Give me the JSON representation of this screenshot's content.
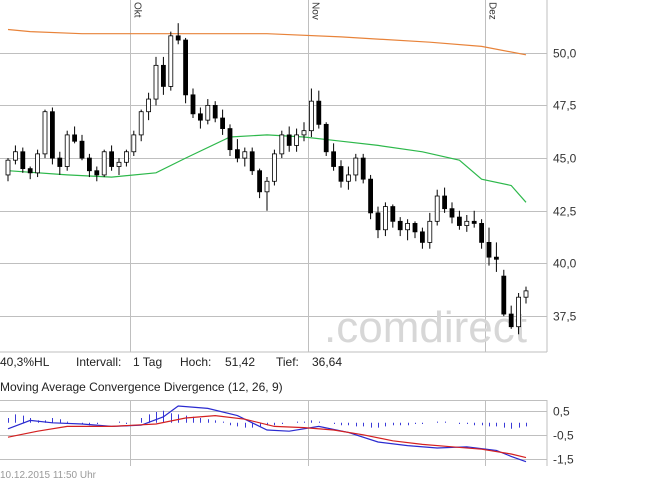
{
  "chart_data": [
    {
      "type": "candlestick",
      "months": [
        "Okt",
        "Nov",
        "Dez"
      ],
      "y_ticks": [
        "50,0",
        "47,5",
        "45,0",
        "42,5",
        "40,0",
        "37,5"
      ],
      "y_tick_values": [
        50.0,
        47.5,
        45.0,
        42.5,
        40.0,
        37.5
      ],
      "ylim": [
        35.8,
        52.5
      ],
      "grid": true,
      "watermark": ".comdirect",
      "candles": [
        [
          44.2,
          45.0,
          43.9,
          44.9
        ],
        [
          44.9,
          45.6,
          44.7,
          45.3
        ],
        [
          45.3,
          45.5,
          44.3,
          44.5
        ],
        [
          44.5,
          44.6,
          44.0,
          44.3
        ],
        [
          44.3,
          45.4,
          44.1,
          45.2
        ],
        [
          45.2,
          47.3,
          45.0,
          47.2
        ],
        [
          47.2,
          47.4,
          44.7,
          45.0
        ],
        [
          45.0,
          45.3,
          44.2,
          44.6
        ],
        [
          44.6,
          46.3,
          44.4,
          46.1
        ],
        [
          46.1,
          46.5,
          45.7,
          45.8
        ],
        [
          45.8,
          46.1,
          44.9,
          45.0
        ],
        [
          45.0,
          45.2,
          44.1,
          44.4
        ],
        [
          44.4,
          44.6,
          43.9,
          44.2
        ],
        [
          44.2,
          45.4,
          44.1,
          45.3
        ],
        [
          45.3,
          45.6,
          44.4,
          44.6
        ],
        [
          44.6,
          45.0,
          44.2,
          44.8
        ],
        [
          44.8,
          45.4,
          44.6,
          45.3
        ],
        [
          45.3,
          46.3,
          45.1,
          46.1
        ],
        [
          46.1,
          47.3,
          45.8,
          47.2
        ],
        [
          47.2,
          48.1,
          46.8,
          47.8
        ],
        [
          47.8,
          49.8,
          47.5,
          49.4
        ],
        [
          49.4,
          49.8,
          48.0,
          48.4
        ],
        [
          48.4,
          51.0,
          48.2,
          50.8
        ],
        [
          50.8,
          51.4,
          50.4,
          50.6
        ],
        [
          50.6,
          50.7,
          47.6,
          48.0
        ],
        [
          48.0,
          48.3,
          46.9,
          47.1
        ],
        [
          47.1,
          47.4,
          46.4,
          46.8
        ],
        [
          46.8,
          47.8,
          46.6,
          47.5
        ],
        [
          47.5,
          47.7,
          46.7,
          46.9
        ],
        [
          46.9,
          47.3,
          46.1,
          46.4
        ],
        [
          46.4,
          46.6,
          45.1,
          45.4
        ],
        [
          45.4,
          45.9,
          44.8,
          45.0
        ],
        [
          45.0,
          45.5,
          44.6,
          45.3
        ],
        [
          45.3,
          45.5,
          44.2,
          44.4
        ],
        [
          44.4,
          44.5,
          43.1,
          43.4
        ],
        [
          43.4,
          44.1,
          42.5,
          43.9
        ],
        [
          43.9,
          45.4,
          43.7,
          45.2
        ],
        [
          45.2,
          46.3,
          45.0,
          46.1
        ],
        [
          46.1,
          46.5,
          45.3,
          45.6
        ],
        [
          45.6,
          46.4,
          45.3,
          46.1
        ],
        [
          46.1,
          46.7,
          45.8,
          46.3
        ],
        [
          46.3,
          48.3,
          46.0,
          47.7
        ],
        [
          47.7,
          48.2,
          46.4,
          46.6
        ],
        [
          46.6,
          46.7,
          45.1,
          45.3
        ],
        [
          45.3,
          45.7,
          44.4,
          44.6
        ],
        [
          44.6,
          44.9,
          43.6,
          43.9
        ],
        [
          43.9,
          44.6,
          43.5,
          44.2
        ],
        [
          44.2,
          45.2,
          43.9,
          45.0
        ],
        [
          45.0,
          45.2,
          43.8,
          44.0
        ],
        [
          44.0,
          44.2,
          42.1,
          42.4
        ],
        [
          42.4,
          42.7,
          41.2,
          41.6
        ],
        [
          41.6,
          42.9,
          41.3,
          42.7
        ],
        [
          42.7,
          42.8,
          41.7,
          42.0
        ],
        [
          42.0,
          42.2,
          41.3,
          41.6
        ],
        [
          41.6,
          42.1,
          41.1,
          41.9
        ],
        [
          41.9,
          42.0,
          41.2,
          41.5
        ],
        [
          41.5,
          41.7,
          40.7,
          41.0
        ],
        [
          41.0,
          42.4,
          40.7,
          42.0
        ],
        [
          42.0,
          43.5,
          41.8,
          43.2
        ],
        [
          43.2,
          43.6,
          42.4,
          42.6
        ],
        [
          42.6,
          42.9,
          41.9,
          42.2
        ],
        [
          42.2,
          42.5,
          41.6,
          41.8
        ],
        [
          41.8,
          42.3,
          41.5,
          42.0
        ],
        [
          42.0,
          42.5,
          41.7,
          41.9
        ],
        [
          41.9,
          42.1,
          40.7,
          41.0
        ],
        [
          41.0,
          41.7,
          39.9,
          40.3
        ],
        [
          40.3,
          41.0,
          39.6,
          40.2
        ],
        [
          39.4,
          39.7,
          37.5,
          37.6
        ],
        [
          37.6,
          38.0,
          36.9,
          37.0
        ],
        [
          37.0,
          38.6,
          36.64,
          38.4
        ],
        [
          38.4,
          38.9,
          38.1,
          38.7
        ]
      ],
      "series": [
        {
          "name": "",
          "color": "#e8833a",
          "values": [
            [
              0,
              51.1
            ],
            [
              3,
              51.0
            ],
            [
              10,
              50.9
            ],
            [
              20,
              50.9
            ],
            [
              35,
              50.9
            ],
            [
              45,
              50.75
            ],
            [
              57,
              50.5
            ],
            [
              64,
              50.3
            ],
            [
              70,
              49.9
            ]
          ]
        },
        {
          "name": "",
          "color": "#2db84b",
          "values": [
            [
              0,
              44.4
            ],
            [
              8,
              44.2
            ],
            [
              14,
              44.1
            ],
            [
              20,
              44.3
            ],
            [
              24,
              45.0
            ],
            [
              30,
              46.0
            ],
            [
              35,
              46.1
            ],
            [
              40,
              46.0
            ],
            [
              45,
              45.8
            ],
            [
              50,
              45.6
            ],
            [
              56,
              45.3
            ],
            [
              61,
              44.9
            ],
            [
              64,
              44.0
            ],
            [
              68,
              43.7
            ],
            [
              70,
              42.9
            ]
          ]
        }
      ]
    },
    {
      "type": "macd",
      "title": "Moving Average Convergence Divergence (12, 26, 9)",
      "y_ticks": [
        "0,5",
        "-0,5",
        "-1,5"
      ],
      "y_tick_values": [
        0.5,
        -0.5,
        -1.5
      ],
      "ylim": [
        -1.8,
        0.95
      ],
      "grid": true,
      "series": [
        {
          "name": "",
          "color": "#2a2ad0",
          "values": [
            [
              0,
              -0.25
            ],
            [
              3,
              0.1
            ],
            [
              6,
              0.0
            ],
            [
              10,
              -0.05
            ],
            [
              14,
              -0.15
            ],
            [
              18,
              -0.1
            ],
            [
              21,
              0.25
            ],
            [
              23,
              0.7
            ],
            [
              27,
              0.6
            ],
            [
              31,
              0.3
            ],
            [
              35,
              -0.3
            ],
            [
              38,
              -0.35
            ],
            [
              42,
              -0.15
            ],
            [
              46,
              -0.4
            ],
            [
              50,
              -0.8
            ],
            [
              54,
              -0.95
            ],
            [
              58,
              -1.05
            ],
            [
              62,
              -1.0
            ],
            [
              66,
              -1.15
            ],
            [
              68,
              -1.4
            ],
            [
              70,
              -1.62
            ]
          ]
        },
        {
          "name": "",
          "color": "#d42020",
          "values": [
            [
              0,
              -0.6
            ],
            [
              4,
              -0.35
            ],
            [
              8,
              -0.15
            ],
            [
              14,
              -0.15
            ],
            [
              20,
              -0.05
            ],
            [
              24,
              0.2
            ],
            [
              28,
              0.3
            ],
            [
              32,
              0.15
            ],
            [
              36,
              -0.15
            ],
            [
              40,
              -0.2
            ],
            [
              44,
              -0.3
            ],
            [
              48,
              -0.5
            ],
            [
              52,
              -0.75
            ],
            [
              56,
              -0.9
            ],
            [
              60,
              -1.0
            ],
            [
              64,
              -1.1
            ],
            [
              68,
              -1.3
            ],
            [
              70,
              -1.45
            ]
          ]
        }
      ],
      "histogram": [
        0.2,
        0.35,
        0.3,
        0.2,
        0.1,
        0.1,
        0.2,
        0.15,
        0.05,
        0.0,
        -0.05,
        -0.1,
        -0.05,
        0.0,
        0.0,
        0.05,
        -0.05,
        0.0,
        0.2,
        0.35,
        0.45,
        0.5,
        0.4,
        0.35,
        0.3,
        0.25,
        0.2,
        0.15,
        0.1,
        0.05,
        -0.1,
        -0.15,
        -0.2,
        -0.2,
        -0.15,
        -0.1,
        -0.1,
        -0.05,
        0.0,
        0.05,
        0.05,
        0.1,
        0.05,
        0.0,
        -0.05,
        -0.1,
        -0.1,
        -0.15,
        -0.15,
        -0.2,
        -0.2,
        -0.15,
        -0.1,
        -0.1,
        -0.1,
        -0.05,
        -0.05,
        0.0,
        0.05,
        0.05,
        0.0,
        -0.05,
        -0.05,
        -0.1,
        -0.1,
        -0.15,
        -0.15,
        -0.2,
        -0.25,
        -0.2,
        -0.15
      ]
    }
  ],
  "info": {
    "performance": "40,3%HL",
    "interval_label": "Intervall:",
    "interval_value": "1 Tag",
    "high_label": "Hoch:",
    "high_value": "51,42",
    "low_label": "Tief:",
    "low_value": "36,64"
  },
  "footer": {
    "timestamp": "10.12.2015 11:50 Uhr"
  },
  "colors": {
    "grid": "#bfbfbf",
    "candle": "#000000",
    "axis_text": "#333333"
  }
}
